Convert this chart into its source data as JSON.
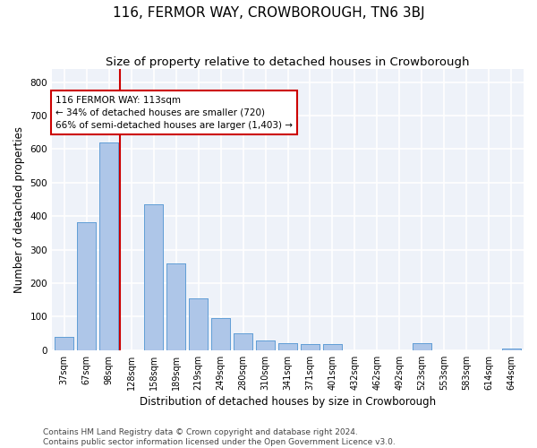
{
  "title": "116, FERMOR WAY, CROWBOROUGH, TN6 3BJ",
  "subtitle": "Size of property relative to detached houses in Crowborough",
  "xlabel": "Distribution of detached houses by size in Crowborough",
  "ylabel": "Number of detached properties",
  "categories": [
    "37sqm",
    "67sqm",
    "98sqm",
    "128sqm",
    "158sqm",
    "189sqm",
    "219sqm",
    "249sqm",
    "280sqm",
    "310sqm",
    "341sqm",
    "371sqm",
    "401sqm",
    "432sqm",
    "462sqm",
    "492sqm",
    "523sqm",
    "553sqm",
    "583sqm",
    "614sqm",
    "644sqm"
  ],
  "values": [
    40,
    383,
    620,
    0,
    435,
    260,
    155,
    97,
    50,
    30,
    22,
    17,
    17,
    0,
    0,
    0,
    20,
    0,
    0,
    0,
    5
  ],
  "bar_color": "#aec6e8",
  "bar_edge_color": "#5b9bd5",
  "vline_color": "#cc0000",
  "vline_x": 2.5,
  "annotation_text": "116 FERMOR WAY: 113sqm\n← 34% of detached houses are smaller (720)\n66% of semi-detached houses are larger (1,403) →",
  "annotation_box_color": "#ffffff",
  "annotation_box_edge": "#cc0000",
  "bg_color": "#eef2f9",
  "grid_color": "#ffffff",
  "ylim": [
    0,
    840
  ],
  "yticks": [
    0,
    100,
    200,
    300,
    400,
    500,
    600,
    700,
    800
  ],
  "footer": "Contains HM Land Registry data © Crown copyright and database right 2024.\nContains public sector information licensed under the Open Government Licence v3.0.",
  "title_fontsize": 11,
  "subtitle_fontsize": 9.5,
  "xlabel_fontsize": 8.5,
  "ylabel_fontsize": 8.5,
  "tick_fontsize": 7,
  "footer_fontsize": 6.5,
  "ann_fontsize": 7.5
}
